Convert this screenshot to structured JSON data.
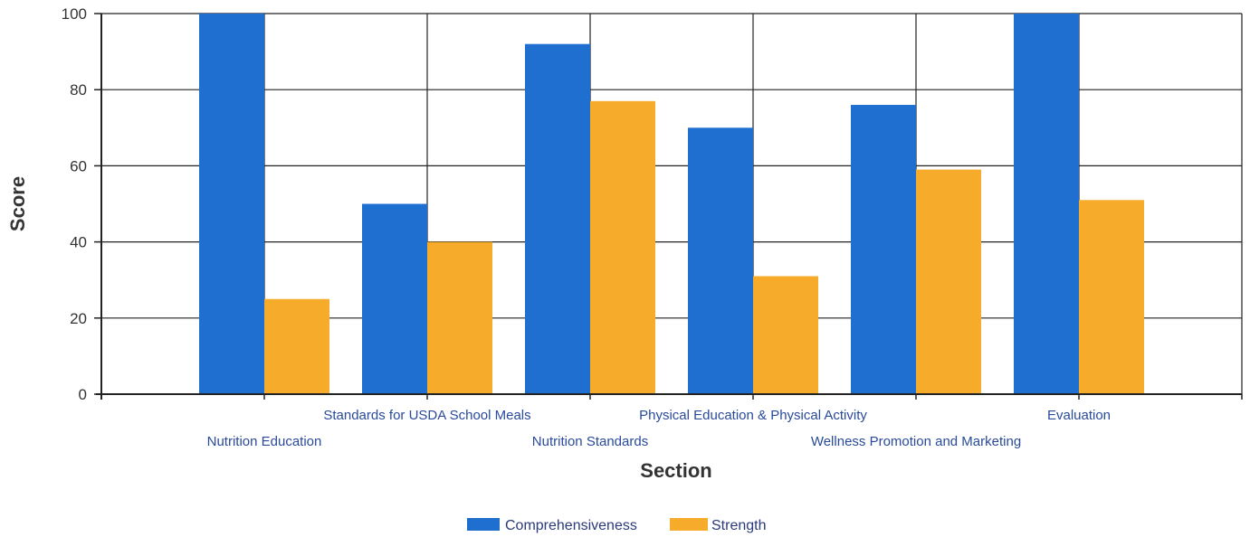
{
  "chart_data": {
    "type": "bar",
    "title": "",
    "xlabel": "Section",
    "ylabel": "Score",
    "ylim": [
      0,
      100
    ],
    "yticks": [
      0,
      20,
      40,
      60,
      80,
      100
    ],
    "grid": true,
    "legend_position": "bottom",
    "categories": [
      "Nutrition Education",
      "Standards for USDA School Meals",
      "Nutrition Standards",
      "Physical Education & Physical Activity",
      "Wellness Promotion and Marketing",
      "Evaluation"
    ],
    "series": [
      {
        "name": "Comprehensiveness",
        "color": "#1f6fd1",
        "values": [
          100,
          50,
          92,
          70,
          76,
          100
        ]
      },
      {
        "name": "Strength",
        "color": "#f6ab2b",
        "values": [
          25,
          40,
          77,
          31,
          59,
          51
        ]
      }
    ]
  }
}
